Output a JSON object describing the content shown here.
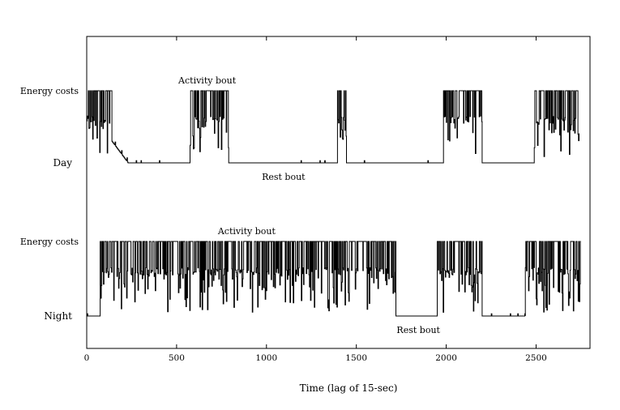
{
  "chart_data": {
    "type": "line",
    "title": "",
    "xlabel": "Time (lag of 15-sec)",
    "ylabel": "",
    "xlim": [
      0,
      2800
    ],
    "xticks": [
      0,
      500,
      1000,
      1500,
      2000,
      2500
    ],
    "xtick_labels": [
      "0",
      "500",
      "1000",
      "1500",
      "2000",
      "2500"
    ],
    "panels": [
      {
        "name": "Day",
        "y_high_label": "Energy costs",
        "y_low_label": "Day",
        "levels": {
          "low": 0,
          "mid": 0.55,
          "high": 1
        },
        "series_segments": [
          {
            "x0": 0,
            "x1": 140,
            "pattern": "active"
          },
          {
            "x0": 140,
            "x1": 230,
            "pattern": "decay"
          },
          {
            "x0": 230,
            "x1": 575,
            "pattern": "rest"
          },
          {
            "x0": 575,
            "x1": 790,
            "pattern": "active"
          },
          {
            "x0": 790,
            "x1": 1395,
            "pattern": "rest"
          },
          {
            "x0": 1395,
            "x1": 1445,
            "pattern": "active"
          },
          {
            "x0": 1445,
            "x1": 1985,
            "pattern": "rest"
          },
          {
            "x0": 1985,
            "x1": 2200,
            "pattern": "active"
          },
          {
            "x0": 2200,
            "x1": 2490,
            "pattern": "rest"
          },
          {
            "x0": 2490,
            "x1": 2740,
            "pattern": "active"
          }
        ],
        "annotations": [
          {
            "text": "Activity bout",
            "x": 670,
            "near": "high"
          },
          {
            "text": "Rest bout",
            "x": 1095,
            "near": "below-low"
          }
        ]
      },
      {
        "name": "Night",
        "y_high_label": "Energy costs",
        "y_low_label": "Night",
        "levels": {
          "low": 0,
          "mid": 0.55,
          "high": 1
        },
        "series_segments": [
          {
            "x0": 0,
            "x1": 75,
            "pattern": "rest"
          },
          {
            "x0": 75,
            "x1": 1720,
            "pattern": "active"
          },
          {
            "x0": 1720,
            "x1": 1950,
            "pattern": "rest"
          },
          {
            "x0": 1950,
            "x1": 2200,
            "pattern": "active"
          },
          {
            "x0": 2200,
            "x1": 2440,
            "pattern": "rest"
          },
          {
            "x0": 2440,
            "x1": 2750,
            "pattern": "active"
          }
        ],
        "annotations": [
          {
            "text": "Activity bout",
            "x": 890,
            "near": "high"
          },
          {
            "text": "Rest bout",
            "x": 1845,
            "near": "below-low"
          }
        ]
      }
    ]
  }
}
